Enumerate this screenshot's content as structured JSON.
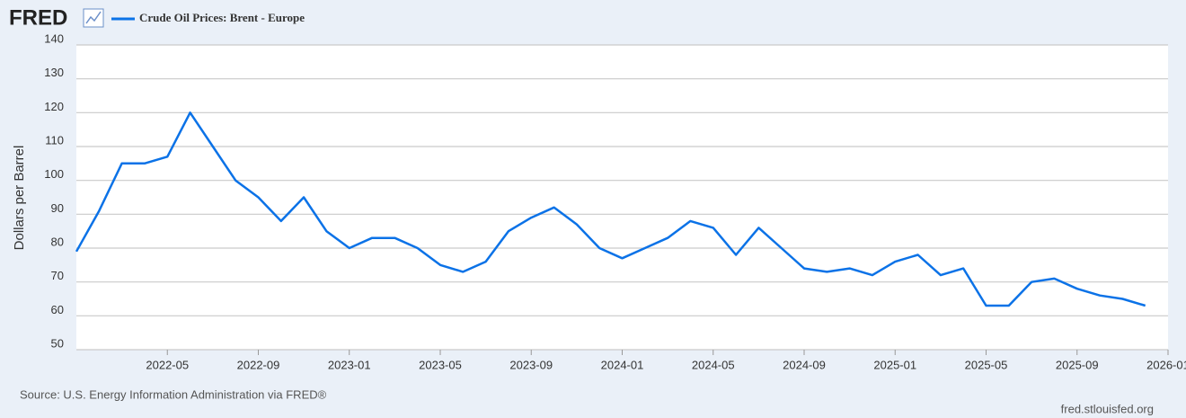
{
  "logo": "FRED",
  "chart_data": {
    "type": "line",
    "ylabel": "Dollars per Barrel",
    "source": "Source: U.S. Energy Information Administration via FRED®",
    "credit": "fred.stlouisfed.org",
    "x": [
      "2022-01",
      "2022-02",
      "2022-03",
      "2022-04",
      "2022-05",
      "2022-06",
      "2022-07",
      "2022-08",
      "2022-09",
      "2022-10",
      "2022-11",
      "2022-12",
      "2023-01",
      "2023-02",
      "2023-03",
      "2023-04",
      "2023-05",
      "2023-06",
      "2023-07",
      "2023-08",
      "2023-09",
      "2023-10",
      "2023-11",
      "2023-12",
      "2024-01",
      "2024-02",
      "2024-03",
      "2024-04",
      "2024-05",
      "2024-06",
      "2024-07",
      "2024-08",
      "2024-09",
      "2024-10",
      "2024-11",
      "2024-12",
      "2025-01",
      "2025-02",
      "2025-03",
      "2025-04",
      "2025-05",
      "2025-06",
      "2025-07",
      "2025-08",
      "2025-09",
      "2025-10",
      "2025-11",
      "2025-12"
    ],
    "series": [
      {
        "name": "Crude Oil Prices: Brent - Europe",
        "color": "#0b72e7",
        "values": [
          79,
          91,
          105,
          105,
          107,
          120,
          110,
          100,
          95,
          88,
          95,
          85,
          80,
          83,
          83,
          80,
          75,
          73,
          76,
          85,
          89,
          92,
          87,
          80,
          77,
          80,
          83,
          88,
          86,
          78,
          86,
          80,
          74,
          73,
          74,
          72,
          76,
          78,
          72,
          74,
          63,
          63,
          70,
          71,
          68,
          66,
          65,
          63
        ]
      }
    ],
    "xlim": [
      "2022-01",
      "2026-01"
    ],
    "xticks": [
      "2022-05",
      "2022-09",
      "2023-01",
      "2023-05",
      "2023-09",
      "2024-01",
      "2024-05",
      "2024-09",
      "2025-01",
      "2025-05",
      "2025-09",
      "2026-01"
    ],
    "ylim": [
      50,
      140
    ],
    "yticks": [
      50,
      60,
      70,
      80,
      90,
      100,
      110,
      120,
      130,
      140
    ],
    "grid": true
  }
}
